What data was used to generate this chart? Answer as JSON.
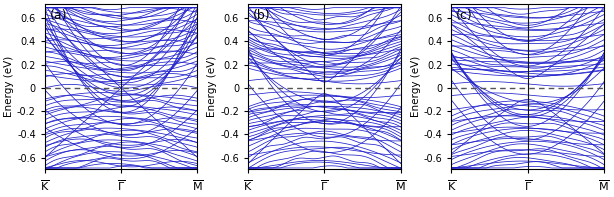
{
  "panel_labels": [
    "(a)",
    "(b)",
    "(c)"
  ],
  "x_tick_labels": [
    [
      "$\\overline{\\mathrm{K}}$",
      "$\\overline{\\Gamma}$",
      "$\\overline{\\mathrm{M}}$"
    ],
    [
      "$\\overline{\\mathrm{K}}$",
      "$\\overline{\\Gamma}$",
      "$\\overline{\\mathrm{M}}$"
    ],
    [
      "$\\overline{\\mathrm{K}}$",
      "$\\overline{\\Gamma}$",
      "$\\overline{\\mathrm{M}}$"
    ]
  ],
  "ylabel": "Energy (eV)",
  "ylim": [
    -0.7,
    0.72
  ],
  "yticks": [
    -0.6,
    -0.4,
    -0.2,
    0.0,
    0.2,
    0.4,
    0.6
  ],
  "ytick_labels": [
    "-0.6",
    "-0.4",
    "-0.2",
    "0",
    "0.2",
    "0.4",
    "0.6"
  ],
  "line_color": "#2020cc",
  "line_width": 0.55,
  "fermi_color": "#555555",
  "fermi_lw": 1.0,
  "vline_color": "#111111",
  "vline_lw": 0.8,
  "background_color": "#ffffff",
  "figsize": [
    6.14,
    1.97
  ],
  "dpi": 100
}
